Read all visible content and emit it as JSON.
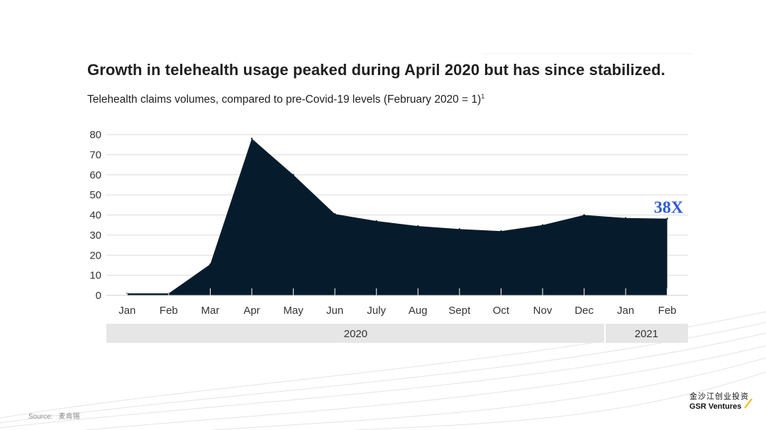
{
  "title": "Growth in telehealth usage peaked during April 2020 but has since stabilized.",
  "subtitle": "Telehealth claims volumes, compared to pre-Covid-19 levels (February 2020 = 1)",
  "subtitle_footnote": "1",
  "chart_data": {
    "type": "area",
    "categories": [
      "Jan",
      "Feb",
      "Mar",
      "Apr",
      "May",
      "Jun",
      "July",
      "Aug",
      "Sept",
      "Oct",
      "Nov",
      "Dec",
      "Jan",
      "Feb"
    ],
    "values": [
      1,
      1,
      15.5,
      78,
      60,
      40.5,
      37,
      34.5,
      33,
      32,
      35,
      40,
      38.5,
      38.2
    ],
    "yticks": [
      0,
      10,
      20,
      30,
      40,
      50,
      60,
      70,
      80
    ],
    "ylim": [
      0,
      80
    ],
    "year_groups": [
      {
        "label": "2020",
        "start": 0,
        "end": 11
      },
      {
        "label": "2021",
        "start": 12,
        "end": 13
      }
    ],
    "annotation": "38X",
    "fill_color": "#061b2b",
    "annotation_color": "#2f5bd6",
    "grid": true
  },
  "footer": {
    "source_label": "Source:",
    "source_value": "麦肯锡",
    "brand_cn": "金沙江创业投资",
    "brand_en": "GSR Ventures",
    "brand_accent": "#f2b705"
  }
}
